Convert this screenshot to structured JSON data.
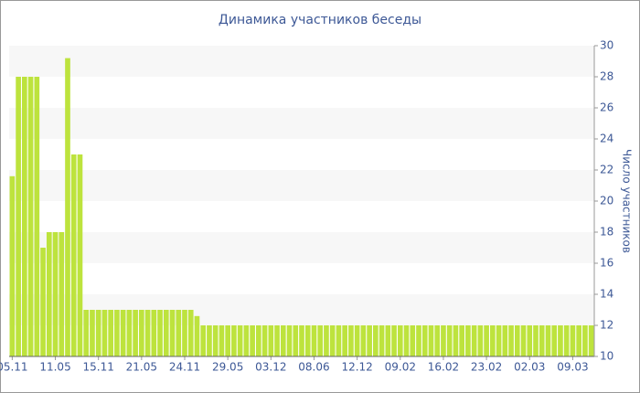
{
  "chart_data": {
    "type": "bar",
    "title": "Динамика участников беседы",
    "y_label": "Число участников",
    "categories": [
      "05.11",
      null,
      null,
      null,
      null,
      null,
      null,
      "11.05",
      null,
      null,
      null,
      null,
      null,
      null,
      "15.11",
      null,
      null,
      null,
      null,
      null,
      null,
      "21.05",
      null,
      null,
      null,
      null,
      null,
      null,
      "24.11",
      null,
      null,
      null,
      null,
      null,
      null,
      "29.05",
      null,
      null,
      null,
      null,
      null,
      null,
      "03.12",
      null,
      null,
      null,
      null,
      null,
      null,
      "08.06",
      null,
      null,
      null,
      null,
      null,
      null,
      "12.12",
      null,
      null,
      null,
      null,
      null,
      null,
      "09.02",
      null,
      null,
      null,
      null,
      null,
      null,
      "16.02",
      null,
      null,
      null,
      null,
      null,
      null,
      "23.02",
      null,
      null,
      null,
      null,
      null,
      null,
      "02.03",
      null,
      null,
      null,
      null,
      null,
      null,
      "09.03",
      null,
      null,
      null
    ],
    "values": [
      21.6,
      28,
      28,
      28,
      28,
      17,
      18,
      18,
      18,
      29.2,
      23,
      23,
      13,
      13,
      13,
      13,
      13,
      13,
      13,
      13,
      13,
      13,
      13,
      13,
      13,
      13,
      13,
      13,
      13,
      13,
      12.6,
      12,
      12,
      12,
      12,
      12,
      12,
      12,
      12,
      12,
      12,
      12,
      12,
      12,
      12,
      12,
      12,
      12,
      12,
      12,
      12,
      12,
      12,
      12,
      12,
      12,
      12,
      12,
      12,
      12,
      12,
      12,
      12,
      12,
      12,
      12,
      12,
      12,
      12,
      12,
      12,
      12,
      12,
      12,
      12,
      12,
      12,
      12,
      12,
      12,
      12,
      12,
      12,
      12,
      12,
      12,
      12,
      12,
      12,
      12,
      12,
      12,
      12,
      12,
      12
    ],
    "color": "#bde33d",
    "ylim": [
      10,
      30
    ],
    "yticks": [
      10,
      12,
      14,
      16,
      18,
      20,
      22,
      24,
      26,
      28,
      30
    ],
    "y_axis_side": "right",
    "grid": true
  }
}
